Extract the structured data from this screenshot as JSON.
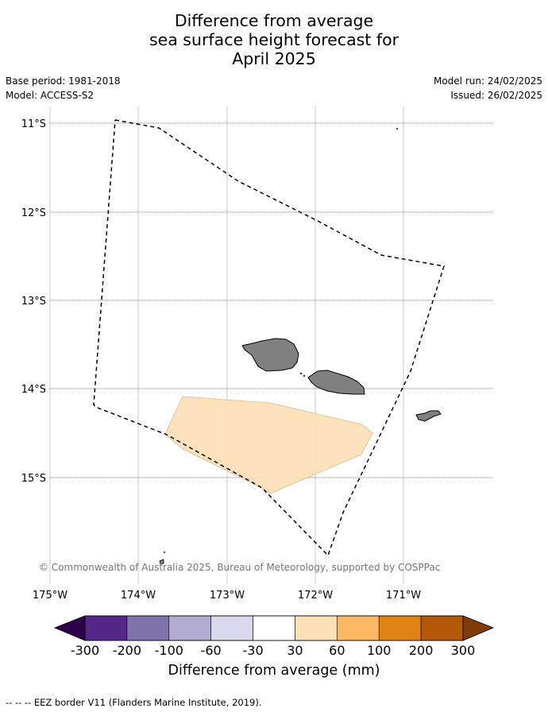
{
  "title_lines": [
    "Difference from average",
    "sea surface height forecast for",
    "April 2025"
  ],
  "base_period": "Base period: 1981-2018",
  "model": "Model: ACCESS-S2",
  "model_run": "Model run: 24/02/2025",
  "issued": "Issued: 26/02/2025",
  "lat_labels": [
    "11°S",
    "12°S",
    "13°S",
    "14°S",
    "15°S"
  ],
  "lon_labels": [
    "175°W",
    "174°W",
    "173°W",
    "172°W",
    "171°W"
  ],
  "copyright": "© Commonwealth of Australia 2025, Bureau of Meteorology, supported by COSPPac",
  "colorbar": {
    "ticks": [
      "-300",
      "-200",
      "-100",
      "-60",
      "-30",
      "30",
      "60",
      "100",
      "200",
      "300"
    ],
    "colors": [
      "#2d004b",
      "#542788",
      "#8073ac",
      "#b2abd2",
      "#d8daeb",
      "#ffffff",
      "#fee0b6",
      "#fdb863",
      "#e08214",
      "#b35806",
      "#7f3b08"
    ],
    "label": "Difference from average (mm)"
  },
  "anomaly_fill_color": "#fee0b6",
  "land_color": "#808080",
  "legend_text": "--  --  -- EEZ border V11 (Flanders Marine Institute, 2019)."
}
